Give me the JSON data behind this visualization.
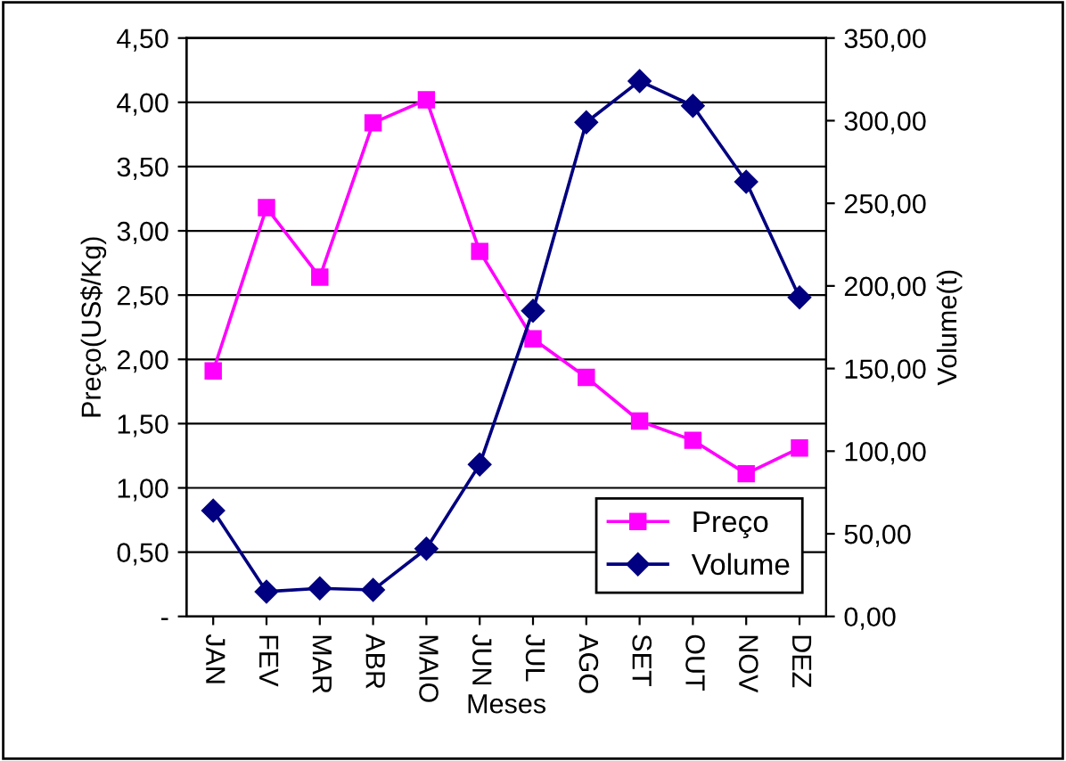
{
  "chart_data": {
    "type": "line",
    "xlabel": "Meses",
    "ylabel": "Preço(US$/Kg)",
    "y2label": "Volume(t)",
    "categories": [
      "JAN",
      "FEV",
      "MAR",
      "ABR",
      "MAIO",
      "JUN",
      "JUL",
      "AGO",
      "SET",
      "OUT",
      "NOV",
      "DEZ"
    ],
    "series": [
      {
        "name": "Preço",
        "color": "#ff00ff",
        "marker": "square",
        "values": [
          1.91,
          3.18,
          2.64,
          3.84,
          4.02,
          2.84,
          2.16,
          1.86,
          1.52,
          1.37,
          1.11,
          1.31
        ]
      },
      {
        "name": "Volume",
        "color": "#000080",
        "marker": "diamond",
        "axis": "y2",
        "values": [
          64,
          15,
          17,
          16,
          41,
          92,
          185,
          299,
          324,
          309,
          263,
          193
        ]
      }
    ],
    "ylim": [
      0,
      4.5
    ],
    "yticks": [
      {
        "value": 0,
        "label": "-"
      },
      {
        "value": 0.5,
        "label": "0,50"
      },
      {
        "value": 1,
        "label": "1,00"
      },
      {
        "value": 1.5,
        "label": "1,50"
      },
      {
        "value": 2,
        "label": "2,00"
      },
      {
        "value": 2.5,
        "label": "2,50"
      },
      {
        "value": 3,
        "label": "3,00"
      },
      {
        "value": 3.5,
        "label": "3,50"
      },
      {
        "value": 4,
        "label": "4,00"
      },
      {
        "value": 4.5,
        "label": "4,50"
      }
    ],
    "y2lim": [
      0,
      350
    ],
    "y2ticks": [
      {
        "value": 0,
        "label": "0,00"
      },
      {
        "value": 50,
        "label": "50,00"
      },
      {
        "value": 100,
        "label": "100,00"
      },
      {
        "value": 150,
        "label": "150,00"
      },
      {
        "value": 200,
        "label": "200,00"
      },
      {
        "value": 250,
        "label": "250,00"
      },
      {
        "value": 300,
        "label": "300,00"
      },
      {
        "value": 350,
        "label": "350,00"
      }
    ],
    "grid": "y",
    "legend": "bottom right",
    "line_style": "solid"
  }
}
